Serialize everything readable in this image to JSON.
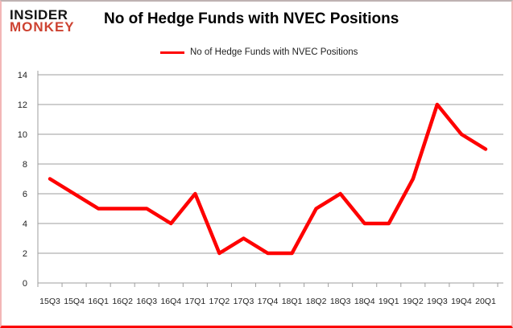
{
  "logo": {
    "line1": "INSIDER",
    "line2": "MONKEY"
  },
  "header": {
    "title": "No of Hedge Funds with NVEC Positions"
  },
  "legend": {
    "label": "No of Hedge Funds with NVEC Positions"
  },
  "chart_data": {
    "type": "line",
    "title": "No of Hedge Funds with NVEC Positions",
    "categories": [
      "15Q3",
      "15Q4",
      "16Q1",
      "16Q2",
      "16Q3",
      "16Q4",
      "17Q1",
      "17Q2",
      "17Q3",
      "17Q4",
      "18Q1",
      "18Q2",
      "18Q3",
      "18Q4",
      "19Q1",
      "19Q2",
      "19Q3",
      "19Q4",
      "20Q1"
    ],
    "series": [
      {
        "name": "No of Hedge Funds with NVEC Positions",
        "values": [
          7,
          6,
          5,
          5,
          5,
          4,
          6,
          2,
          3,
          2,
          2,
          5,
          6,
          4,
          4,
          7,
          12,
          10,
          9
        ],
        "color": "#fe0000"
      }
    ],
    "xlabel": "",
    "ylabel": "",
    "ylim": [
      0,
      14
    ],
    "ytick_interval": 2,
    "grid": "horizontal-only",
    "legend_position": "top-center",
    "axis_color": "#9e9e9e",
    "label_color": "#1f1f1f"
  },
  "colors": {
    "accent_red": "#fe0000",
    "logo_red": "#cd4231",
    "frame_side_pink": "#f3b7b7",
    "frame_bottom_red": "#fb0202",
    "grid_gray": "#9e9e9e"
  }
}
